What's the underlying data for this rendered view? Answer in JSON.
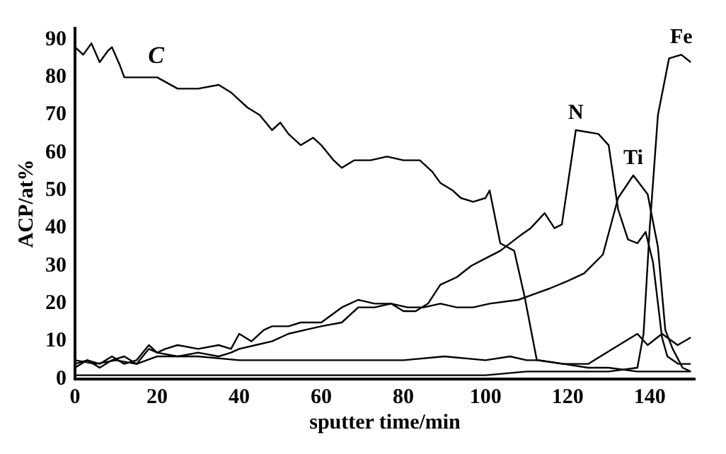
{
  "chart_data": {
    "type": "line",
    "xlabel": "sputter time/min",
    "ylabel": "ACP/at%",
    "xlim": [
      0,
      151
    ],
    "ylim": [
      0,
      93
    ],
    "xticks": [
      0,
      20,
      40,
      60,
      80,
      100,
      120,
      140
    ],
    "yticks": [
      0,
      10,
      20,
      30,
      40,
      50,
      60,
      70,
      80,
      90
    ],
    "grid": false,
    "legend": false,
    "marker": "none",
    "line_style": "solid",
    "series": [
      {
        "name": "C",
        "color": "#000000",
        "x": [
          0,
          2,
          4,
          6,
          8,
          9,
          11,
          12,
          15,
          20,
          25,
          30,
          35,
          38,
          40,
          42,
          45,
          48,
          50,
          52,
          55,
          58,
          60,
          63,
          65,
          68,
          72,
          76,
          80,
          84,
          87,
          89,
          92,
          94,
          97,
          100,
          101,
          103.6,
          107,
          109.5,
          112.5,
          119,
          125,
          130,
          137,
          145,
          150
        ],
        "values": [
          88,
          86,
          89,
          84,
          87,
          88,
          83,
          80,
          80,
          80,
          77,
          77,
          78,
          76,
          74,
          72,
          70,
          66,
          68,
          65,
          62,
          64,
          62,
          58,
          56,
          58,
          58,
          59,
          58,
          58,
          55,
          52,
          50,
          48,
          47,
          48,
          50,
          36,
          34,
          22,
          5,
          4,
          3,
          3,
          2,
          2,
          2
        ]
      },
      {
        "name": "N",
        "color": "#000000",
        "x": [
          0,
          3,
          6,
          9,
          12,
          15,
          18,
          20,
          22,
          25,
          30,
          35,
          38,
          40,
          43,
          46,
          48,
          52,
          55,
          60,
          65,
          69,
          73,
          77,
          80,
          83,
          86,
          89,
          93,
          96.5,
          100,
          103.6,
          108.4,
          111,
          114.4,
          116.8,
          118.6,
          122,
          127.5,
          130,
          132.3,
          134.7,
          137,
          139,
          140.8,
          143,
          144.3,
          147,
          150
        ],
        "values": [
          3,
          5,
          4,
          6,
          4,
          5,
          9,
          7,
          8,
          9,
          8,
          9,
          8,
          12,
          10,
          13,
          14,
          14,
          15,
          15,
          19,
          21,
          20,
          20,
          18,
          18,
          20,
          25,
          27,
          30,
          32,
          34,
          38,
          40,
          44,
          40,
          41,
          66,
          65,
          62,
          45,
          37,
          36,
          39,
          31,
          11,
          6,
          4,
          4
        ]
      },
      {
        "name": "Ti",
        "color": "#000000",
        "x": [
          0,
          3,
          6,
          9,
          12,
          15,
          18,
          20,
          25,
          30,
          35,
          38,
          40,
          44,
          48,
          52,
          56,
          60,
          65,
          69,
          73,
          77,
          81,
          85,
          89,
          93,
          97,
          101,
          108,
          115.6,
          120,
          124,
          128.6,
          132.3,
          136,
          139.5,
          142,
          143.8,
          145.6,
          148,
          150
        ],
        "values": [
          4,
          5,
          3,
          5,
          6,
          4,
          8,
          7,
          6,
          7,
          6,
          7,
          8,
          9,
          10,
          12,
          13,
          14,
          15,
          19,
          19,
          20,
          19,
          19,
          20,
          19,
          19,
          20,
          21,
          24,
          26,
          28,
          33,
          48,
          54,
          49,
          35,
          13,
          8,
          3,
          2
        ]
      },
      {
        "color": "#000000",
        "x": [
          0,
          5,
          10,
          15,
          20,
          30,
          40,
          50,
          60,
          70,
          80,
          90,
          100,
          106,
          110,
          113,
          119,
          125,
          131,
          137,
          139.5,
          143,
          146.8,
          150
        ],
        "values": [
          5,
          4,
          5,
          4,
          6,
          6,
          5,
          5,
          5,
          5,
          5,
          6,
          5,
          6,
          5,
          5,
          4,
          4,
          8,
          12,
          9,
          12,
          9,
          11
        ]
      },
      {
        "name": "Fe",
        "color": "#000000",
        "x": [
          0,
          20,
          40,
          60,
          80,
          100,
          110,
          120,
          130,
          137,
          138.5,
          140,
          142,
          144.7,
          147.7,
          150
        ],
        "values": [
          1,
          1,
          1,
          1,
          1,
          1,
          2,
          2,
          2,
          3,
          12,
          40,
          70,
          85,
          86,
          84
        ]
      }
    ]
  }
}
